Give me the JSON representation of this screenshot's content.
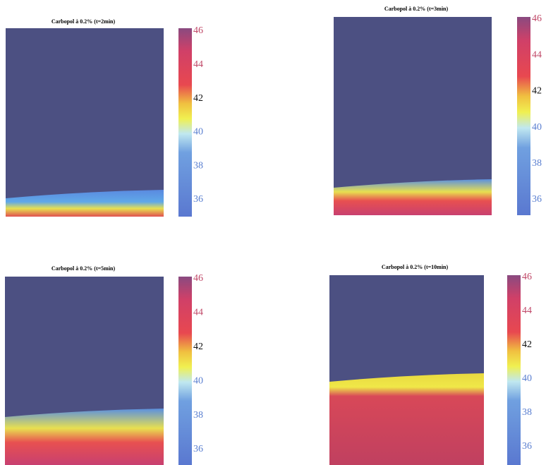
{
  "panels": [
    {
      "title": "Carbopol à 0.2% (t=2min)",
      "colorbar_ticks": [
        46,
        44,
        42,
        40,
        38,
        36
      ]
    },
    {
      "title": "Carbopol à 0.2% (t=3min)",
      "colorbar_ticks": [
        46,
        44,
        42,
        40,
        38,
        36
      ]
    },
    {
      "title": "Carbopol à 0.2% (t=5min)",
      "colorbar_ticks": [
        46,
        44,
        42,
        40,
        38,
        36
      ]
    },
    {
      "title": "Carbopol à 0.2% (t=10min)",
      "colorbar_ticks": [
        46,
        44,
        42,
        40,
        38,
        36
      ]
    }
  ]
}
